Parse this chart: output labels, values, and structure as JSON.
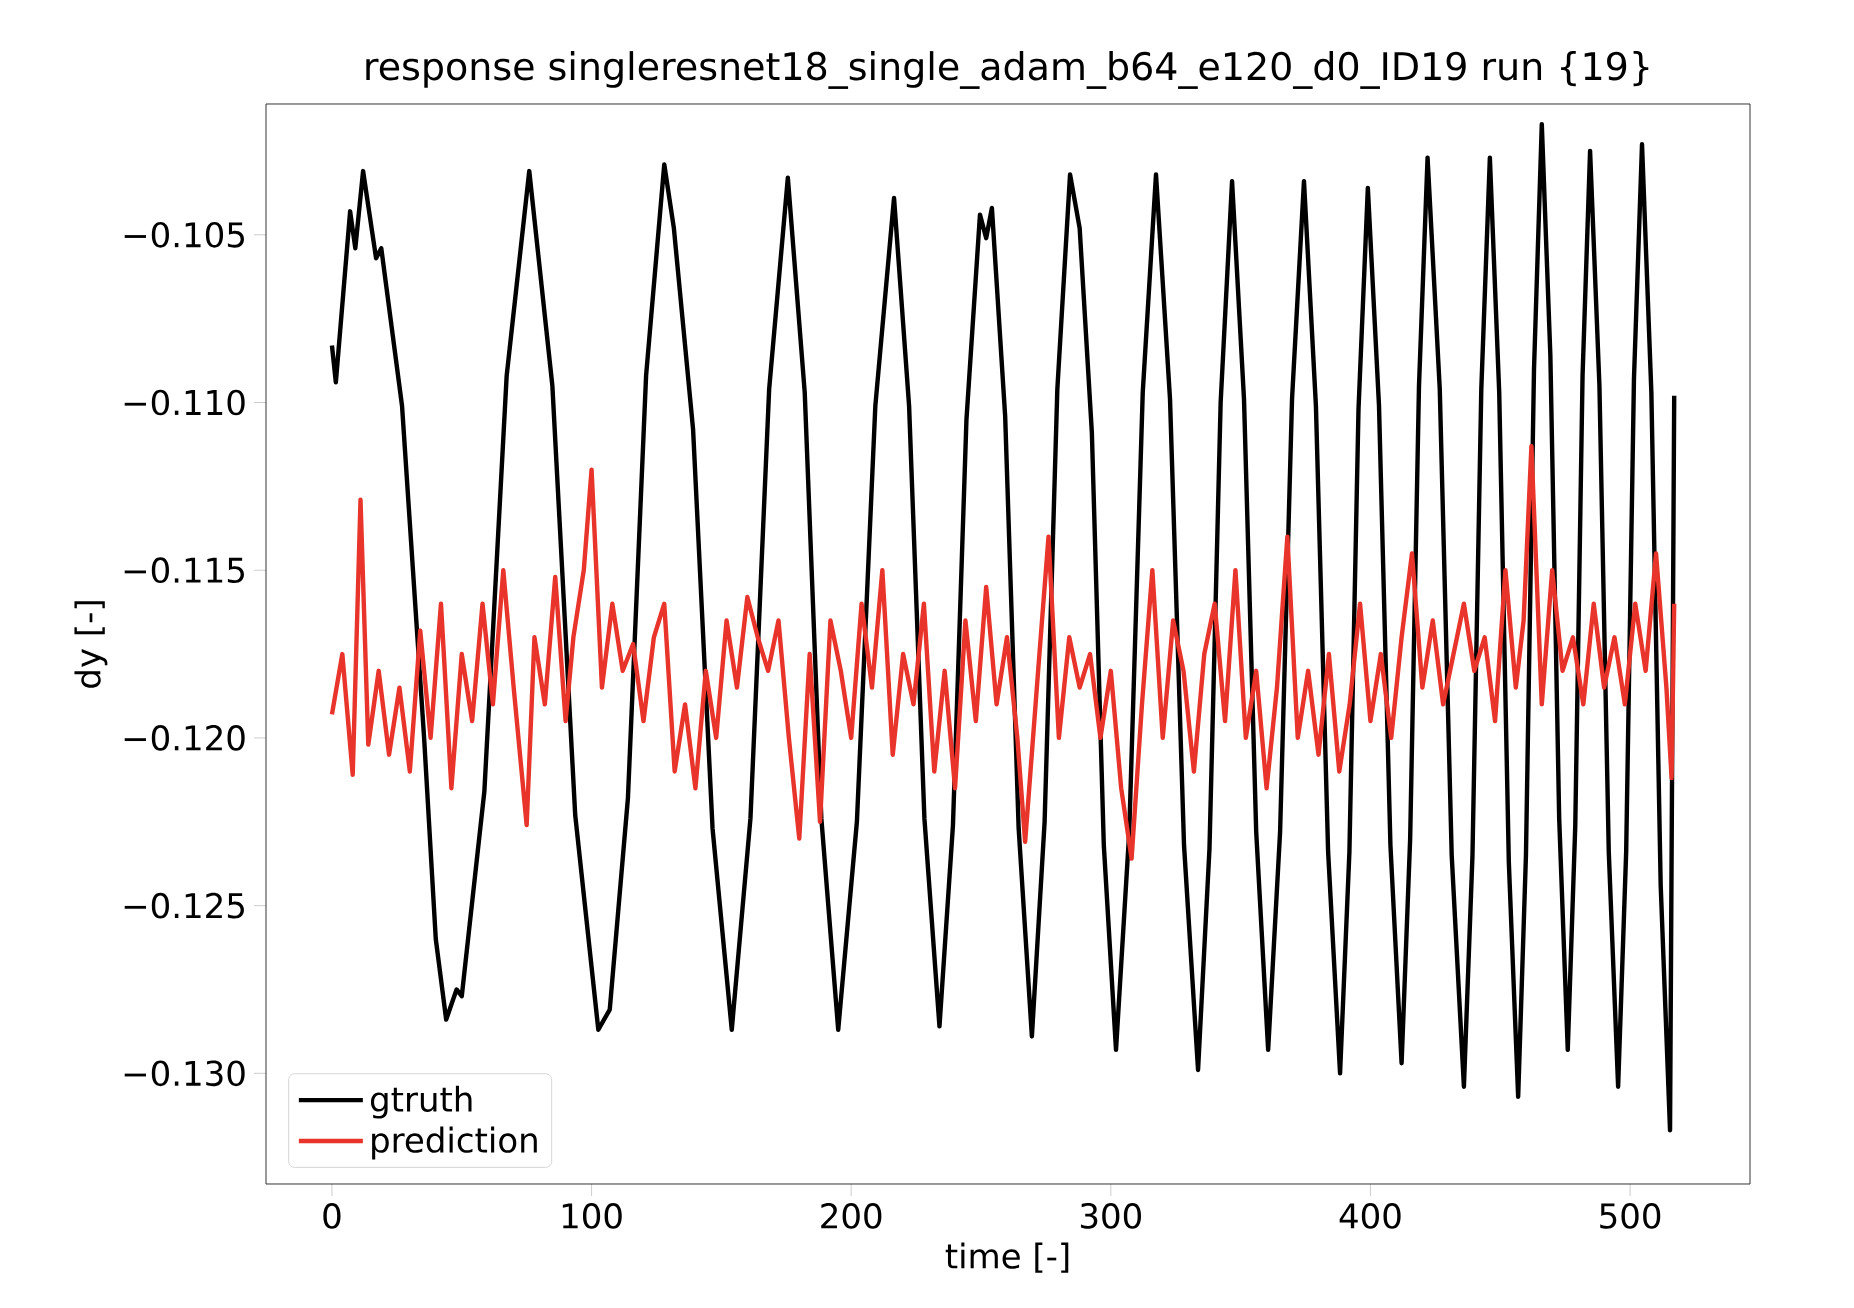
{
  "chart_data": {
    "type": "line",
    "title": "response singleresnet18_single_adam_b64_e120_d0_ID19 run {19}",
    "xlabel": "time [-]",
    "ylabel": "dy [-]",
    "xlim": [
      -25.4,
      546.2
    ],
    "ylim": [
      -0.1333,
      -0.1011
    ],
    "xticks": [
      0,
      100,
      200,
      300,
      400,
      500
    ],
    "yticks": [
      {
        "value": -0.13,
        "label": "−0.130"
      },
      {
        "value": -0.125,
        "label": "−0.125"
      },
      {
        "value": -0.12,
        "label": "−0.120"
      },
      {
        "value": -0.115,
        "label": "−0.115"
      },
      {
        "value": -0.11,
        "label": "−0.110"
      },
      {
        "value": -0.105,
        "label": "−0.105"
      }
    ],
    "legend": "bottom left",
    "grid": false,
    "marker": "none",
    "line_style": "solid",
    "series": [
      {
        "name": "gtruth",
        "color": "#000000",
        "x": [
          0,
          1.5,
          7,
          9,
          12,
          17,
          19,
          27,
          35.5,
          40,
          44,
          48,
          50,
          58.7,
          67.3,
          76,
          84.9,
          93.7,
          102.6,
          107,
          114,
          121,
          128,
          131.7,
          139.1,
          146.6,
          154,
          161.2,
          168.4,
          175.6,
          182.1,
          188.5,
          195,
          202.2,
          209.3,
          216.5,
          222.3,
          228.2,
          234,
          239.2,
          244.4,
          249.6,
          252,
          254.2,
          259.3,
          264.5,
          269.6,
          274.5,
          279.4,
          284.3,
          288,
          292.7,
          297.3,
          302,
          307.1,
          312.3,
          317.4,
          322.8,
          328.2,
          333.6,
          338,
          342.3,
          346.7,
          351.3,
          356,
          360.6,
          365.2,
          369.8,
          374.4,
          379,
          383.7,
          388.3,
          391.9,
          395.4,
          399,
          403.3,
          407.7,
          412,
          415.3,
          418.7,
          422,
          426.7,
          431.3,
          436,
          439.3,
          442.7,
          446,
          449.6,
          453.3,
          456.9,
          459.9,
          463,
          466,
          469.3,
          472.7,
          476,
          478.9,
          481.7,
          484.6,
          488.2,
          491.8,
          495.4,
          498.5,
          501.5,
          504.6,
          508.2,
          511.8,
          515.4,
          517
        ],
        "values": [
          -0.1083,
          -0.1094,
          -0.1043,
          -0.1054,
          -0.1031,
          -0.1057,
          -0.1054,
          -0.1101,
          -0.12,
          -0.126,
          -0.1284,
          -0.1275,
          -0.1277,
          -0.1216,
          -0.1092,
          -0.1031,
          -0.1095,
          -0.1223,
          -0.1287,
          -0.1281,
          -0.1218,
          -0.1092,
          -0.1029,
          -0.1048,
          -0.1108,
          -0.1227,
          -0.1287,
          -0.1224,
          -0.1096,
          -0.1033,
          -0.1097,
          -0.1224,
          -0.1287,
          -0.1225,
          -0.1101,
          -0.1039,
          -0.1101,
          -0.1224,
          -0.1286,
          -0.1226,
          -0.1105,
          -0.1044,
          -0.1051,
          -0.1042,
          -0.1104,
          -0.1227,
          -0.1289,
          -0.1225,
          -0.1096,
          -0.1032,
          -0.1048,
          -0.1109,
          -0.1232,
          -0.1293,
          -0.1228,
          -0.1097,
          -0.1032,
          -0.1099,
          -0.1232,
          -0.1299,
          -0.1233,
          -0.11,
          -0.1034,
          -0.1099,
          -0.1228,
          -0.1293,
          -0.1228,
          -0.1099,
          -0.1034,
          -0.1101,
          -0.1234,
          -0.13,
          -0.1234,
          -0.1102,
          -0.1036,
          -0.1101,
          -0.1232,
          -0.1297,
          -0.123,
          -0.1095,
          -0.1027,
          -0.1096,
          -0.1235,
          -0.1304,
          -0.1235,
          -0.1096,
          -0.1027,
          -0.1097,
          -0.1237,
          -0.1307,
          -0.1235,
          -0.109,
          -0.1017,
          -0.1086,
          -0.1224,
          -0.1293,
          -0.1226,
          -0.1092,
          -0.1025,
          -0.1095,
          -0.1234,
          -0.1304,
          -0.1234,
          -0.1093,
          -0.1023,
          -0.1097,
          -0.1244,
          -0.1317,
          -0.1098
        ]
      },
      {
        "name": "prediction",
        "color": "#e8342a",
        "x": [
          0,
          4,
          8,
          11,
          14,
          18,
          22,
          26,
          30,
          34,
          38,
          42,
          46,
          50,
          54,
          58,
          62,
          66,
          70,
          75,
          78,
          82,
          86,
          90,
          93,
          97,
          100,
          104,
          108,
          112,
          116,
          120,
          124,
          128,
          132,
          136,
          140,
          144,
          148,
          152,
          156,
          160,
          164,
          168,
          172,
          176,
          180,
          184,
          188,
          192,
          196,
          200,
          204,
          208,
          212,
          216,
          220,
          224,
          228,
          232,
          236,
          240,
          244,
          248,
          252,
          256,
          260,
          264,
          267,
          272,
          276,
          280,
          284,
          288,
          292,
          296,
          300,
          304,
          308,
          312,
          316,
          320,
          324,
          328,
          332,
          336,
          340,
          344,
          348,
          352,
          356,
          360,
          364,
          368,
          372,
          376,
          380,
          384,
          388,
          392,
          396,
          400,
          404,
          408,
          412,
          416,
          420,
          424,
          428,
          432,
          436,
          440,
          444,
          448,
          452,
          456,
          459,
          462,
          466,
          470,
          474,
          478,
          482,
          486,
          490,
          494,
          498,
          502,
          506,
          510,
          514,
          516,
          517
        ],
        "values": [
          -0.1193,
          -0.1175,
          -0.1211,
          -0.1129,
          -0.1202,
          -0.118,
          -0.1205,
          -0.1185,
          -0.121,
          -0.1168,
          -0.12,
          -0.116,
          -0.1215,
          -0.1175,
          -0.1195,
          -0.116,
          -0.119,
          -0.115,
          -0.1185,
          -0.1226,
          -0.117,
          -0.119,
          -0.1152,
          -0.1195,
          -0.117,
          -0.115,
          -0.112,
          -0.1185,
          -0.116,
          -0.118,
          -0.1172,
          -0.1195,
          -0.117,
          -0.116,
          -0.121,
          -0.119,
          -0.1215,
          -0.118,
          -0.12,
          -0.1165,
          -0.1185,
          -0.1158,
          -0.117,
          -0.118,
          -0.1165,
          -0.12,
          -0.123,
          -0.1175,
          -0.1225,
          -0.1165,
          -0.118,
          -0.12,
          -0.116,
          -0.1185,
          -0.115,
          -0.1205,
          -0.1175,
          -0.119,
          -0.116,
          -0.121,
          -0.118,
          -0.1215,
          -0.1165,
          -0.1195,
          -0.1155,
          -0.119,
          -0.117,
          -0.12,
          -0.1231,
          -0.118,
          -0.114,
          -0.12,
          -0.117,
          -0.1185,
          -0.1175,
          -0.12,
          -0.118,
          -0.1215,
          -0.1236,
          -0.119,
          -0.115,
          -0.12,
          -0.1165,
          -0.118,
          -0.121,
          -0.1175,
          -0.116,
          -0.1195,
          -0.115,
          -0.12,
          -0.118,
          -0.1215,
          -0.1185,
          -0.114,
          -0.12,
          -0.118,
          -0.1205,
          -0.1175,
          -0.121,
          -0.119,
          -0.116,
          -0.1195,
          -0.1175,
          -0.12,
          -0.117,
          -0.1145,
          -0.1185,
          -0.1165,
          -0.119,
          -0.1175,
          -0.116,
          -0.118,
          -0.117,
          -0.1195,
          -0.115,
          -0.1185,
          -0.1165,
          -0.1113,
          -0.119,
          -0.115,
          -0.118,
          -0.117,
          -0.119,
          -0.116,
          -0.1185,
          -0.117,
          -0.119,
          -0.116,
          -0.118,
          -0.1145,
          -0.1185,
          -0.1212,
          -0.116
        ]
      }
    ]
  }
}
